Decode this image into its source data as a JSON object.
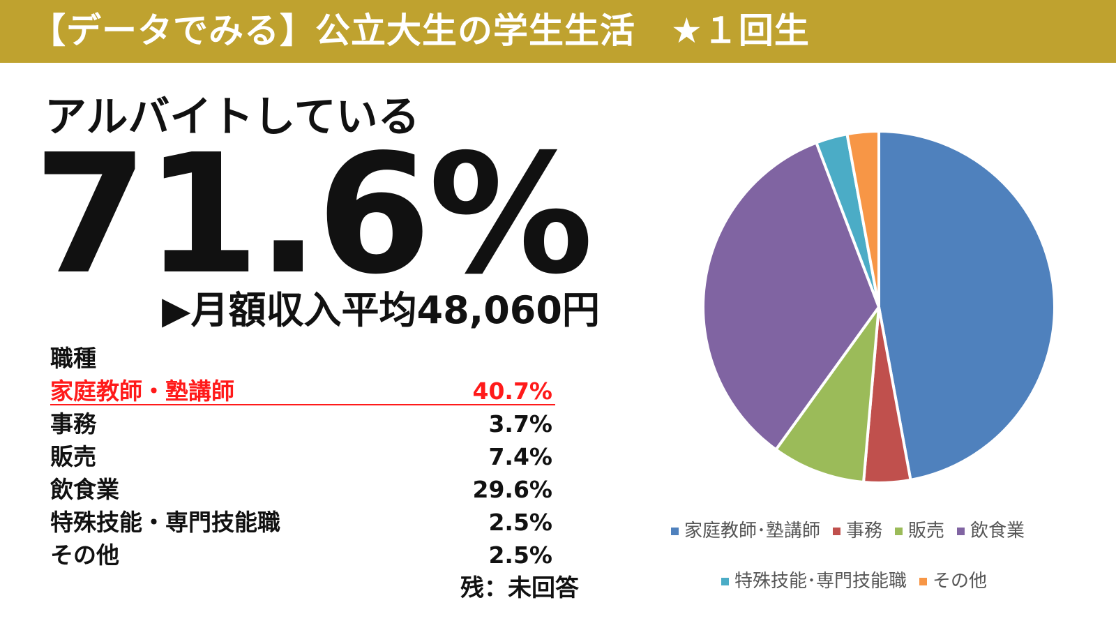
{
  "header": {
    "title": "【データでみる】公立大生の学生生活　★１回生"
  },
  "headline": {
    "subtitle": "アルバイトしている",
    "percent": "71.6%",
    "income": "▶月額収入平均48,060円"
  },
  "table": {
    "heading": "職種",
    "rows": [
      {
        "label": "家庭教師・塾講師",
        "value": "40.7%",
        "highlight": true
      },
      {
        "label": "事務",
        "value": "3.7%"
      },
      {
        "label": "販売",
        "value": "7.4%"
      },
      {
        "label": "飲食業",
        "value": "29.6%"
      },
      {
        "label": "特殊技能・専門技能職",
        "value": "2.5%"
      },
      {
        "label": "その他",
        "value": "2.5%"
      }
    ],
    "footnote": "残：未回答"
  },
  "chart_data": {
    "type": "pie",
    "categories": [
      "家庭教師･塾講師",
      "事務",
      "販売",
      "飲食業",
      "特殊技能･専門技能職",
      "その他"
    ],
    "values": [
      40.7,
      3.7,
      7.4,
      29.6,
      2.5,
      2.5
    ],
    "colors": [
      "#4f81bd",
      "#c0504d",
      "#9bbb59",
      "#8064a2",
      "#4bacc6",
      "#f79646"
    ],
    "start": "12 o'clock",
    "direction": "clockwise",
    "legend": "bottom",
    "legend_labels": [
      "家庭教師･塾講師",
      "事務",
      "販売",
      "飲食業",
      "特殊技能･専門技能職",
      "その他"
    ]
  },
  "colors": {
    "header_bg": "#bfa22f",
    "highlight": "#ff1a1a"
  }
}
